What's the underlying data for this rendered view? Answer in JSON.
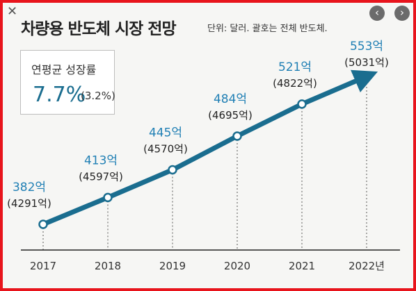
{
  "chart_data": {
    "type": "line",
    "title": "차량용 반도체 시장 전망",
    "subtitle": "단위: 달러. 괄호는 전체 반도체.",
    "categories": [
      "2017",
      "2018",
      "2019",
      "2020",
      "2021",
      "2022년"
    ],
    "series": [
      {
        "values": [
          382,
          413,
          445,
          484,
          521,
          553
        ],
        "labels": [
          "382억",
          "413억",
          "445억",
          "484억",
          "521억",
          "553억"
        ]
      }
    ],
    "total_labels": [
      "(4291억)",
      "(4597억)",
      "(4570억)",
      "(4695억)",
      "(4822억)",
      "(5031억)"
    ],
    "cagr": {
      "label": "연평균 성장률",
      "value": "7.7%",
      "sub": "(3.2%)"
    },
    "colors": {
      "line": "#1a6d8f",
      "value_text": "#1f7fb4",
      "border": "#e8141c"
    }
  },
  "ui": {
    "close_icon": "✕",
    "prev_icon": "‹",
    "next_icon": "›"
  }
}
